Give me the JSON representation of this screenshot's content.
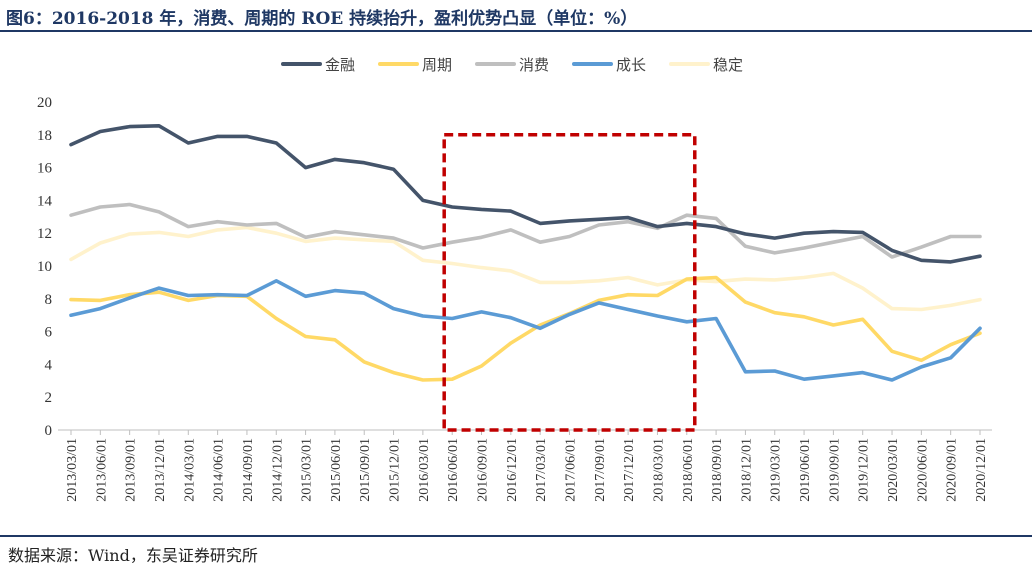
{
  "header": {
    "title": "图6：2016-2018 年，消费、周期的 ROE 持续抬升，盈利优势凸显（单位：%）"
  },
  "footer": {
    "source": "数据来源：Wind，东吴证券研究所"
  },
  "colors": {
    "金融": "#44546a",
    "周期": "#ffd966",
    "消费": "#bfbfbf",
    "成长": "#5b9bd5",
    "稳定": "#fff2cc",
    "highlight": "#c00000",
    "title": "#1f3864"
  },
  "chart_data": {
    "type": "line",
    "title": "",
    "xlabel": "",
    "ylabel": "",
    "ylim": [
      0,
      20
    ],
    "yticks": [
      0,
      2,
      4,
      6,
      8,
      10,
      12,
      14,
      16,
      18,
      20
    ],
    "grid": false,
    "legend_position": "top",
    "x": [
      "2013/03/01",
      "2013/06/01",
      "2013/09/01",
      "2013/12/01",
      "2014/03/01",
      "2014/06/01",
      "2014/09/01",
      "2014/12/01",
      "2015/03/01",
      "2015/06/01",
      "2015/09/01",
      "2015/12/01",
      "2016/03/01",
      "2016/06/01",
      "2016/09/01",
      "2016/12/01",
      "2017/03/01",
      "2017/06/01",
      "2017/09/01",
      "2017/12/01",
      "2018/03/01",
      "2018/06/01",
      "2018/09/01",
      "2018/12/01",
      "2019/03/01",
      "2019/06/01",
      "2019/09/01",
      "2019/12/01",
      "2020/03/01",
      "2020/06/01",
      "2020/09/01",
      "2020/12/01"
    ],
    "series": [
      {
        "name": "金融",
        "values": [
          17.4,
          18.2,
          18.5,
          18.55,
          17.5,
          17.9,
          17.9,
          17.5,
          16.0,
          16.5,
          16.3,
          15.9,
          14.0,
          13.6,
          13.45,
          13.35,
          12.6,
          12.75,
          12.85,
          12.95,
          12.4,
          12.6,
          12.4,
          11.95,
          11.7,
          12.0,
          12.1,
          12.05,
          10.95,
          10.35,
          10.25,
          10.6
        ]
      },
      {
        "name": "周期",
        "values": [
          7.95,
          7.9,
          8.25,
          8.4,
          7.9,
          8.2,
          8.15,
          6.8,
          5.7,
          5.5,
          4.15,
          3.5,
          3.05,
          3.1,
          3.9,
          5.3,
          6.4,
          7.1,
          7.9,
          8.25,
          8.2,
          9.2,
          9.3,
          7.8,
          7.15,
          6.9,
          6.4,
          6.75,
          4.8,
          4.25,
          5.2,
          5.9
        ]
      },
      {
        "name": "消费",
        "values": [
          13.1,
          13.6,
          13.75,
          13.3,
          12.4,
          12.7,
          12.5,
          12.6,
          11.75,
          12.1,
          11.9,
          11.7,
          11.1,
          11.45,
          11.75,
          12.2,
          11.45,
          11.8,
          12.5,
          12.7,
          12.3,
          13.1,
          12.9,
          11.2,
          10.8,
          11.1,
          11.45,
          11.8,
          10.55,
          11.15,
          11.8,
          11.8
        ]
      },
      {
        "name": "成长",
        "values": [
          7.0,
          7.4,
          8.05,
          8.65,
          8.2,
          8.25,
          8.2,
          9.1,
          8.15,
          8.5,
          8.35,
          7.4,
          6.95,
          6.8,
          7.2,
          6.85,
          6.2,
          7.05,
          7.75,
          7.35,
          6.95,
          6.6,
          6.8,
          3.55,
          3.6,
          3.1,
          3.3,
          3.5,
          3.05,
          3.85,
          4.4,
          6.2
        ]
      },
      {
        "name": "稳定",
        "values": [
          10.4,
          11.4,
          11.95,
          12.05,
          11.8,
          12.2,
          12.35,
          12.0,
          11.5,
          11.7,
          11.6,
          11.5,
          10.35,
          10.15,
          9.9,
          9.7,
          9.0,
          9.0,
          9.1,
          9.3,
          8.85,
          9.15,
          9.05,
          9.2,
          9.15,
          9.3,
          9.55,
          8.65,
          7.4,
          7.35,
          7.6,
          7.95
        ]
      }
    ],
    "highlight_box": {
      "x_start": "2016/06/01",
      "x_end": "2018/06/01",
      "y_range": [
        0,
        18
      ]
    }
  }
}
